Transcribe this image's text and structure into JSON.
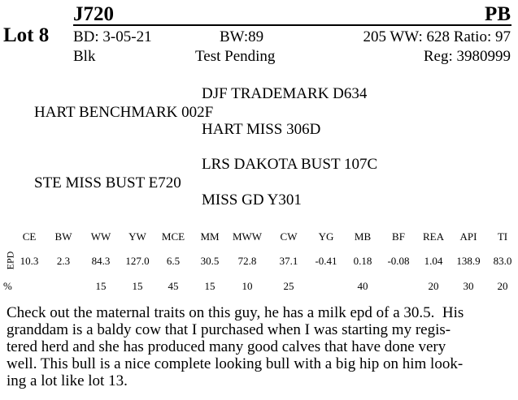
{
  "lot": "Lot 8",
  "header": {
    "tag": "J720",
    "breed": "PB",
    "row1": {
      "bd": "BD: 3-05-21",
      "bw": "BW:89",
      "ww": "205 WW: 628 Ratio: 97"
    },
    "row2": {
      "color": "Blk",
      "status": "Test Pending",
      "reg": "Reg: 3980999"
    }
  },
  "pedigree": {
    "sire": "HART BENCHMARK 002F",
    "sire_sire": "DJF TRADEMARK D634",
    "sire_dam": "HART MISS 306D",
    "dam": "STE MISS BUST E720",
    "dam_sire": "LRS DAKOTA BUST 107C",
    "dam_dam": "MISS GD Y301"
  },
  "epd": {
    "row_labels": [
      "EPD",
      "%"
    ],
    "columns": [
      "CE",
      "BW",
      "WW",
      "YW",
      "MCE",
      "MM",
      "MWW",
      "CW",
      "YG",
      "MB",
      "BF",
      "REA",
      "API",
      "TI"
    ],
    "values": [
      "10.3",
      "2.3",
      "84.3",
      "127.0",
      "6.5",
      "30.5",
      "72.8",
      "37.1",
      "-0.41",
      "0.18",
      "-0.08",
      "1.04",
      "138.9",
      "83.0"
    ],
    "percent": [
      null,
      null,
      "15",
      "15",
      "45",
      "15",
      "10",
      "25",
      null,
      "40",
      null,
      "20",
      "30",
      "20"
    ]
  },
  "description": [
    "Check out the maternal traits on this guy, he has a milk epd of a 30.5.  His",
    "granddam is a baldy cow that I purchased when I was starting my regis-",
    "tered herd and she has produced many good calves that have done very",
    "well. This bull is a nice complete looking bull with a big hip on him look-",
    "ing a lot like lot 13."
  ]
}
